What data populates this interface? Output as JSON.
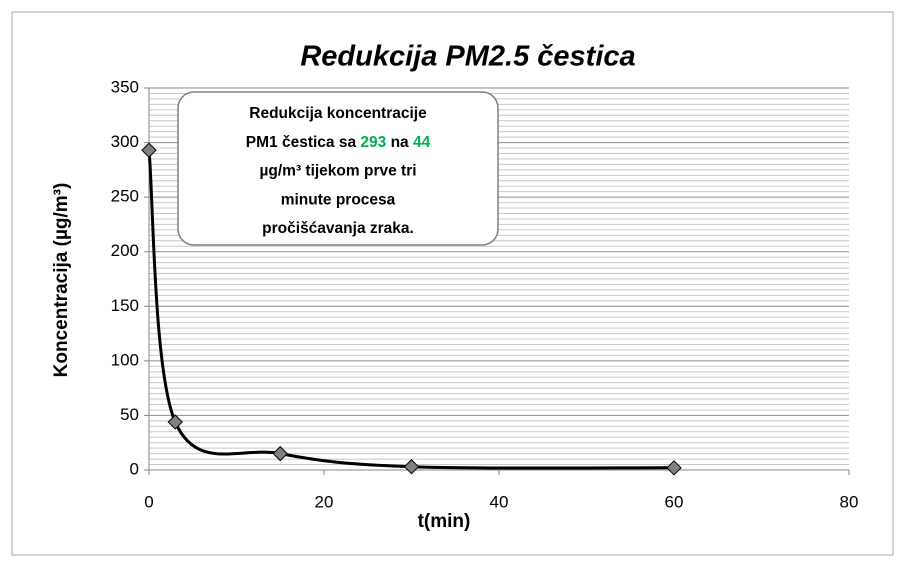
{
  "chart_data": {
    "type": "line",
    "title": "Redukcija PM2.5 čestica",
    "xlabel": "t(min)",
    "ylabel": "Koncentracija (µg/m³)",
    "x": [
      0,
      3,
      15,
      30,
      60
    ],
    "series": [
      {
        "name": "PM2.5",
        "color": "#000000",
        "marker_color": "#808080",
        "values": [
          293,
          44,
          15,
          3,
          2
        ]
      }
    ],
    "xlim": [
      0,
      80
    ],
    "xticks": [
      0,
      20,
      40,
      60,
      80
    ],
    "ylim": [
      0,
      350
    ],
    "yticks": [
      0,
      50,
      100,
      150,
      200,
      250,
      300,
      350
    ],
    "yminor_ticks": [
      5,
      10,
      15,
      20,
      25,
      30,
      35,
      40,
      45,
      55,
      60,
      65,
      70,
      75,
      80,
      85,
      90,
      95,
      105,
      110,
      115,
      120,
      125,
      130,
      135,
      140,
      145,
      155,
      160,
      165,
      170,
      175,
      180,
      185,
      190,
      195,
      205,
      210,
      215,
      220,
      225,
      230,
      235,
      240,
      245,
      255,
      260,
      265,
      270,
      275,
      280,
      285,
      290,
      295,
      305,
      310,
      315,
      320,
      325,
      330,
      335,
      340,
      345
    ],
    "grid": true,
    "smooth": true,
    "annotation": {
      "highlight_color": "#00b050",
      "lines": [
        [
          {
            "text": "Redukcija koncentracije"
          }
        ],
        [
          {
            "text": "PM1 čestica  sa "
          },
          {
            "text": "293",
            "highlight": true
          },
          {
            "text": " na "
          },
          {
            "text": "44",
            "highlight": true
          }
        ],
        [
          {
            "text": "µg/m³ tijekom prve tri"
          }
        ],
        [
          {
            "text": "minute procesa"
          }
        ],
        [
          {
            "text": "pročišćavanja zraka."
          }
        ]
      ]
    }
  }
}
